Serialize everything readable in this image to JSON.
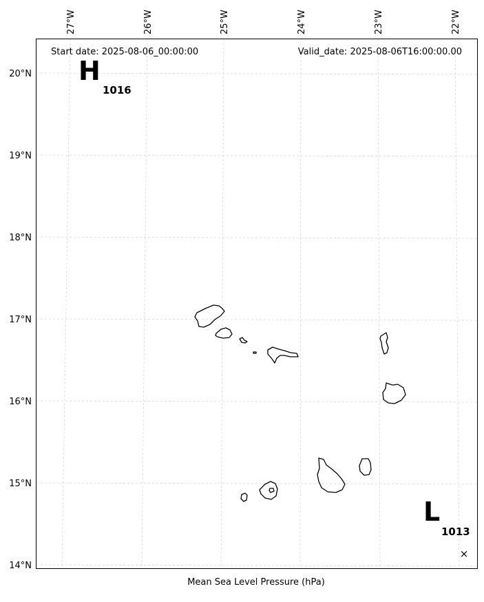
{
  "map": {
    "start_date_label": "Start date: 2025-08-06_00:00:00",
    "valid_date_label": "Valid_date: 2025-08-06T16:00:00.00",
    "colorbar_label": "Mean Sea Level Pressure (hPa)",
    "lon_labels": [
      "27°W",
      "26°W",
      "25°W",
      "24°W",
      "23°W",
      "22°W"
    ],
    "lat_labels": [
      "20°N",
      "19°N",
      "18°N",
      "17°N",
      "16°N",
      "15°N",
      "14°N"
    ],
    "pressure_centers": [
      {
        "type_label": "H",
        "value_label": "1016"
      },
      {
        "type_label": "L",
        "value_label": "1013",
        "marker": "×"
      }
    ]
  }
}
